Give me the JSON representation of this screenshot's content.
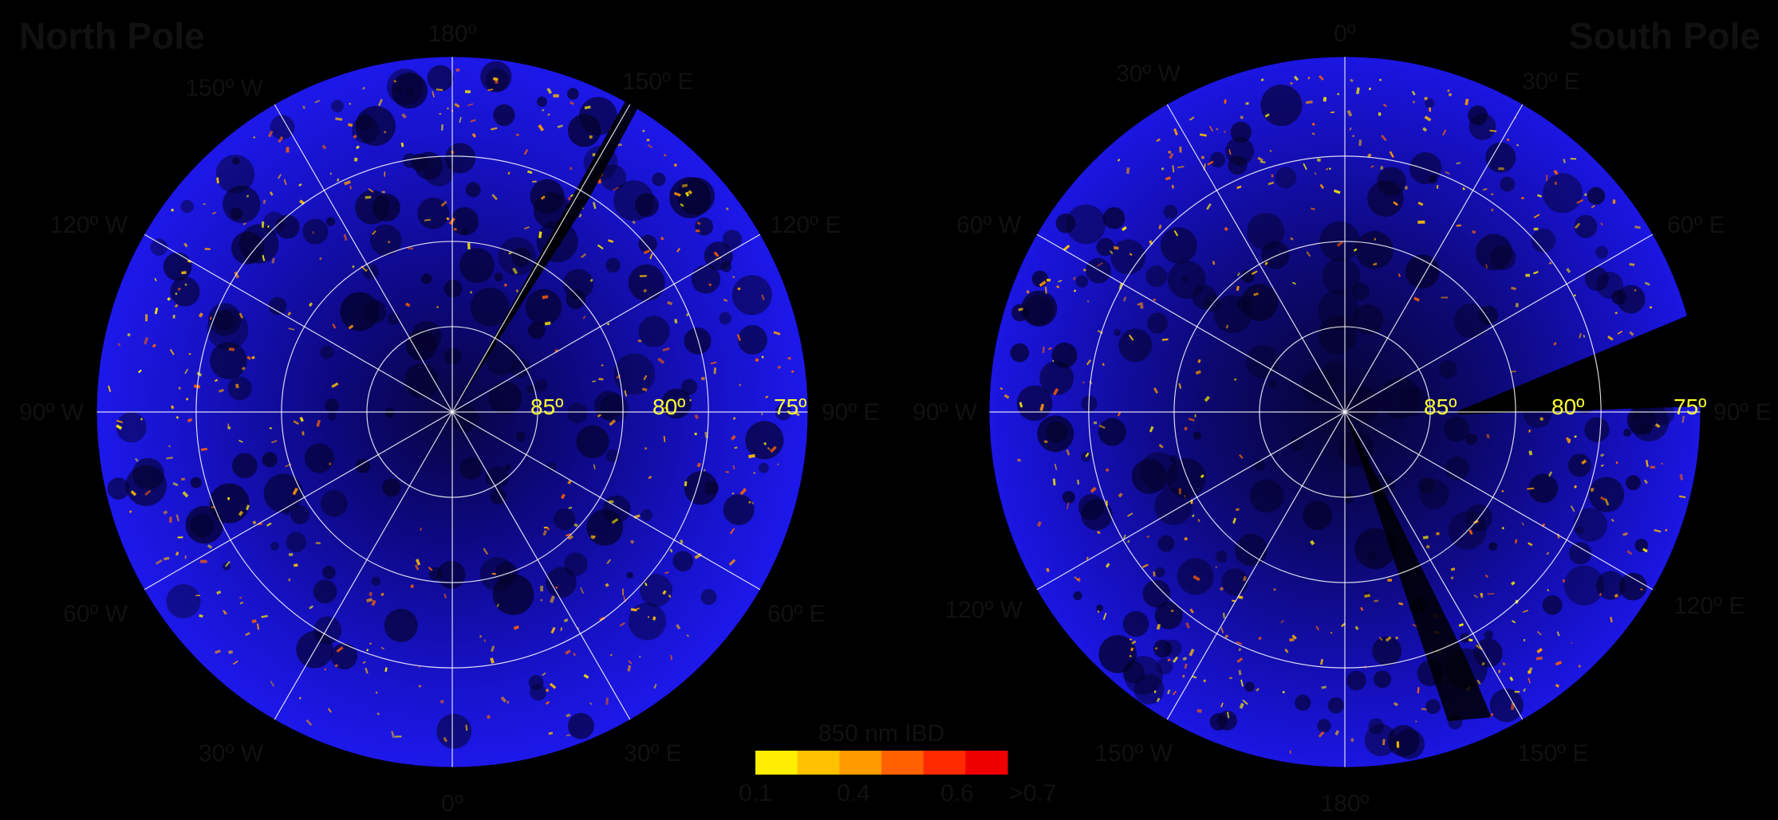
{
  "panels": [
    {
      "title": "North Pole",
      "longitudes": {
        "top": "180º",
        "bottom": "0º",
        "left": "90º W",
        "right": "90º E",
        "top_left_1": "150º W",
        "top_left_2": "120º W",
        "bottom_left_1": "60º W",
        "bottom_left_2": "30º W",
        "top_right_1": "150º E",
        "top_right_2": "120º E",
        "bottom_right_1": "60º E",
        "bottom_right_2": "30º E"
      },
      "latitudes": [
        "85º",
        "80º",
        "75º"
      ]
    },
    {
      "title": "South Pole",
      "longitudes": {
        "top": "0º",
        "bottom": "180º",
        "left": "90º W",
        "right": "90º E",
        "top_left_1": "30º W",
        "top_left_2": "60º W",
        "bottom_left_1": "120º W",
        "bottom_left_2": "150º W",
        "top_right_1": "30º E",
        "top_right_2": "60º E",
        "bottom_right_1": "120º E",
        "bottom_right_2": "150º E"
      },
      "latitudes": [
        "85º",
        "80º",
        "75º"
      ]
    }
  ],
  "legend": {
    "title": "850 nm IBD",
    "ticks": [
      "0.1",
      "0.4",
      "0.6",
      ">0.7"
    ],
    "colors": [
      "#ffee00",
      "#ffc000",
      "#ff9a00",
      "#ff6000",
      "#ff2a00",
      "#ee0000"
    ]
  },
  "colors": {
    "background": "#000000",
    "surface": "#1a14e0",
    "surface_dark": "#090552",
    "grid": "#ffffff",
    "latitude_label": "#ffff33"
  }
}
